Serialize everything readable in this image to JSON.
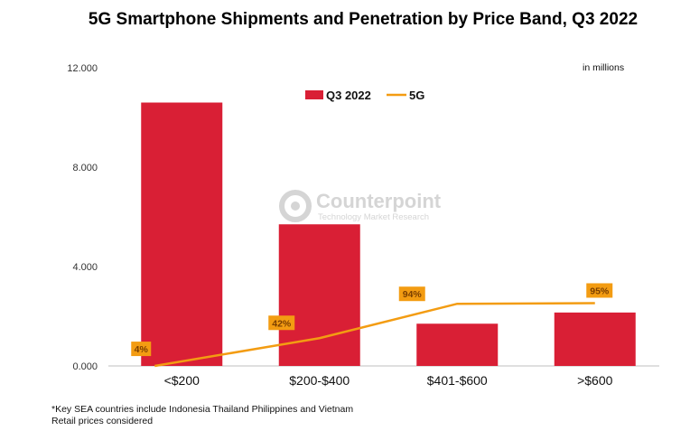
{
  "chart_data": {
    "type": "bar",
    "title": "5G Smartphone Shipments and Penetration by Price Band, Q3 2022",
    "unit_note": "in millions",
    "categories": [
      "<$200",
      "$200-$400",
      "$401-$600",
      ">$600"
    ],
    "series": [
      {
        "name": "Q3 2022",
        "type": "bar",
        "color": "#d91f35",
        "values": [
          10.6,
          5.7,
          1.7,
          2.15
        ]
      },
      {
        "name": "5G",
        "type": "line",
        "color": "#f39c12",
        "values": [
          4,
          42,
          94,
          95
        ],
        "value_labels": [
          "4%",
          "42%",
          "94%",
          "95%"
        ]
      }
    ],
    "y_ticks": [
      "0.000",
      "4.000",
      "8.000",
      "12.000"
    ],
    "ylim": [
      0,
      12
    ],
    "line_axis_max_percent": 451,
    "legend_position": "top-center",
    "grid": false
  },
  "watermark": {
    "brand": "Counterpoint",
    "tagline": "Technology Market Research"
  },
  "footnotes": {
    "line1": "*Key SEA countries include Indonesia Thailand Philippines and Vietnam",
    "line2": "Retail prices considered"
  }
}
